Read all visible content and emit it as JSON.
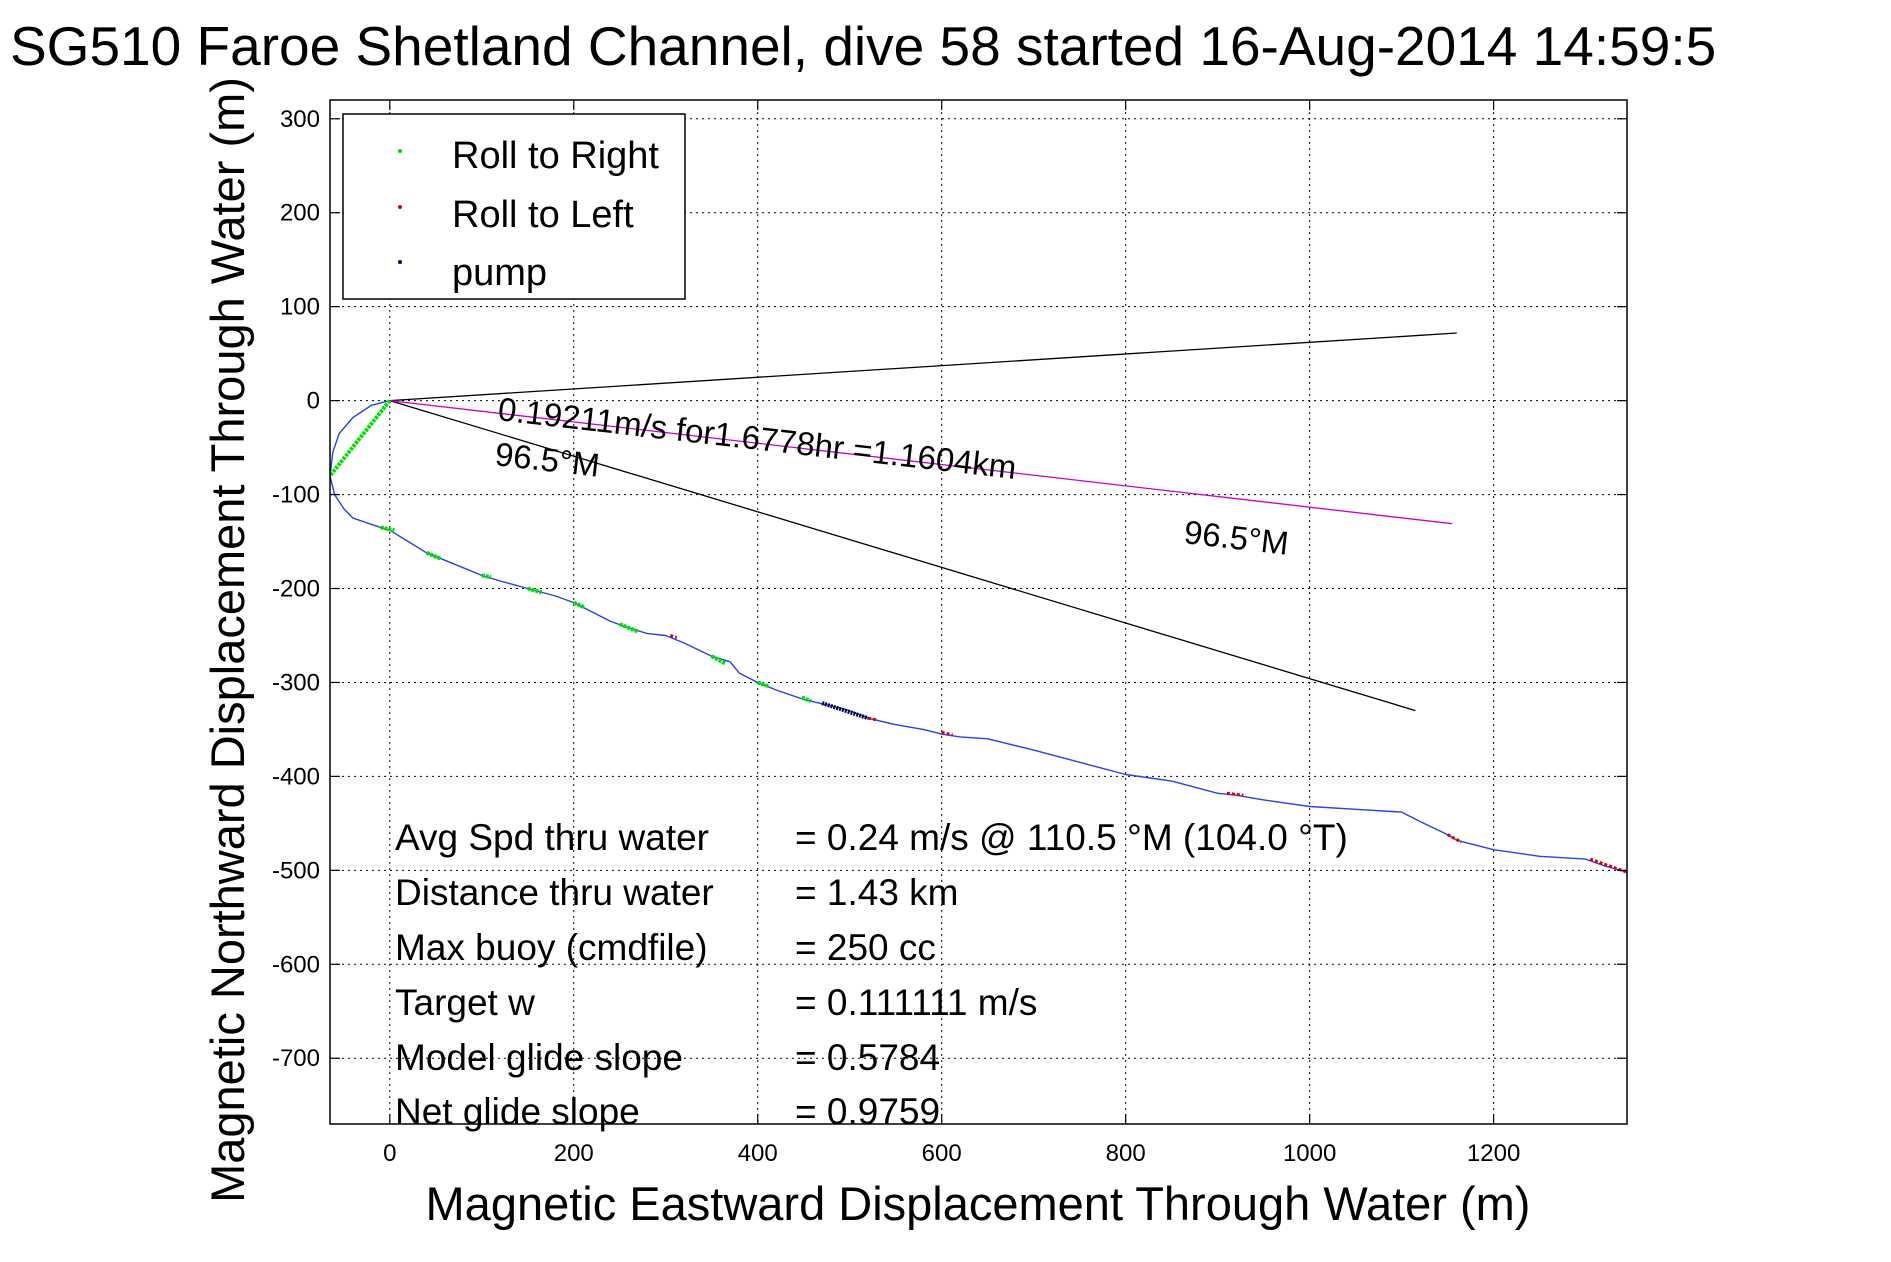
{
  "chart_data": {
    "type": "line",
    "title": "SG510 Faroe Shetland Channel, dive 58 started 16-Aug-2014 14:59:5",
    "xlabel": "Magnetic Eastward Displacement Through Water (m)",
    "ylabel": "Magnetic Northward Displacement Through Water (m)",
    "xlim": [
      -65,
      1345
    ],
    "ylim": [
      -770,
      320
    ],
    "xticks": [
      0,
      200,
      400,
      600,
      800,
      1000,
      1200
    ],
    "yticks": [
      300,
      200,
      100,
      0,
      -100,
      -200,
      -300,
      -400,
      -500,
      -600,
      -700
    ],
    "grid": true,
    "legend_position": "top-left",
    "legend": [
      {
        "label": "Roll to Right",
        "color": "#00dd00"
      },
      {
        "label": "Roll to Left",
        "color": "#dd0000"
      },
      {
        "label": "pump",
        "color": "#000044"
      }
    ],
    "track": {
      "color": "#2244ee",
      "x": [
        0,
        -20,
        -40,
        -55,
        -62,
        -65,
        -60,
        -50,
        -40,
        -25,
        -10,
        0,
        20,
        40,
        60,
        80,
        100,
        120,
        150,
        180,
        200,
        220,
        240,
        260,
        280,
        300,
        320,
        350,
        370,
        380,
        400,
        420,
        450,
        480,
        500,
        520,
        550,
        580,
        600,
        620,
        650,
        700,
        750,
        800,
        850,
        900,
        920,
        950,
        1000,
        1050,
        1100,
        1120,
        1150,
        1160,
        1200,
        1250,
        1300,
        1320,
        1345
      ],
      "y": [
        0,
        -5,
        -18,
        -35,
        -55,
        -80,
        -100,
        -115,
        -125,
        -130,
        -135,
        -138,
        -150,
        -162,
        -170,
        -178,
        -186,
        -192,
        -200,
        -208,
        -215,
        -225,
        -235,
        -242,
        -248,
        -250,
        -258,
        -272,
        -278,
        -290,
        -300,
        -308,
        -318,
        -325,
        -330,
        -338,
        -345,
        -350,
        -355,
        -358,
        -360,
        -372,
        -385,
        -398,
        -405,
        -418,
        -420,
        -425,
        -432,
        -435,
        -438,
        -448,
        -462,
        -468,
        -478,
        -485,
        -488,
        -495,
        -502
      ]
    },
    "roll_right_segments": [
      [
        [
          0,
          0
        ],
        [
          -65,
          -80
        ]
      ],
      [
        [
          -10,
          -135
        ],
        [
          5,
          -138
        ]
      ],
      [
        [
          40,
          -162
        ],
        [
          55,
          -168
        ]
      ],
      [
        [
          100,
          -186
        ],
        [
          110,
          -188
        ]
      ],
      [
        [
          150,
          -200
        ],
        [
          165,
          -204
        ]
      ],
      [
        [
          200,
          -215
        ],
        [
          212,
          -220
        ]
      ],
      [
        [
          250,
          -238
        ],
        [
          270,
          -246
        ]
      ],
      [
        [
          350,
          -272
        ],
        [
          365,
          -280
        ]
      ],
      [
        [
          400,
          -300
        ],
        [
          412,
          -304
        ]
      ],
      [
        [
          448,
          -316
        ],
        [
          458,
          -320
        ]
      ]
    ],
    "roll_left_segments": [
      [
        [
          305,
          -250
        ],
        [
          312,
          -252
        ]
      ],
      [
        [
          520,
          -338
        ],
        [
          530,
          -340
        ]
      ],
      [
        [
          600,
          -353
        ],
        [
          612,
          -356
        ]
      ],
      [
        [
          910,
          -418
        ],
        [
          928,
          -420
        ]
      ],
      [
        [
          1150,
          -462
        ],
        [
          1165,
          -470
        ]
      ],
      [
        [
          1305,
          -488
        ],
        [
          1345,
          -502
        ]
      ]
    ],
    "pump_segment": [
      [
        470,
        -322
      ],
      [
        520,
        -338
      ]
    ],
    "reference_lines": [
      {
        "name": "upper bound",
        "color": "#000000",
        "x": [
          0,
          1160
        ],
        "y": [
          0,
          72
        ]
      },
      {
        "name": "lower bound",
        "color": "#000000",
        "x": [
          0,
          1115
        ],
        "y": [
          0,
          -330
        ]
      },
      {
        "name": "current vector",
        "color": "#cc00cc",
        "x": [
          0,
          1155
        ],
        "y": [
          0,
          -131
        ]
      }
    ],
    "annotations": {
      "current_label": "0.19211m/s for1.6778hr =1.1604km",
      "heading_label_near": "96.5°M",
      "heading_label_far": "96.5°M"
    },
    "stats": [
      {
        "label": "Avg Spd thru water",
        "value": "=  0.24 m/s @ 110.5 °M (104.0 °T)"
      },
      {
        "label": "Distance thru water",
        "value": "=  1.43 km"
      },
      {
        "label": "Max buoy (cmdfile)",
        "value": "= 250 cc"
      },
      {
        "label": "Target w",
        "value": "= 0.111111 m/s"
      },
      {
        "label": "Model glide slope",
        "value": "= 0.5784"
      },
      {
        "label": "Net glide slope",
        "value": "= 0.9759"
      }
    ]
  }
}
